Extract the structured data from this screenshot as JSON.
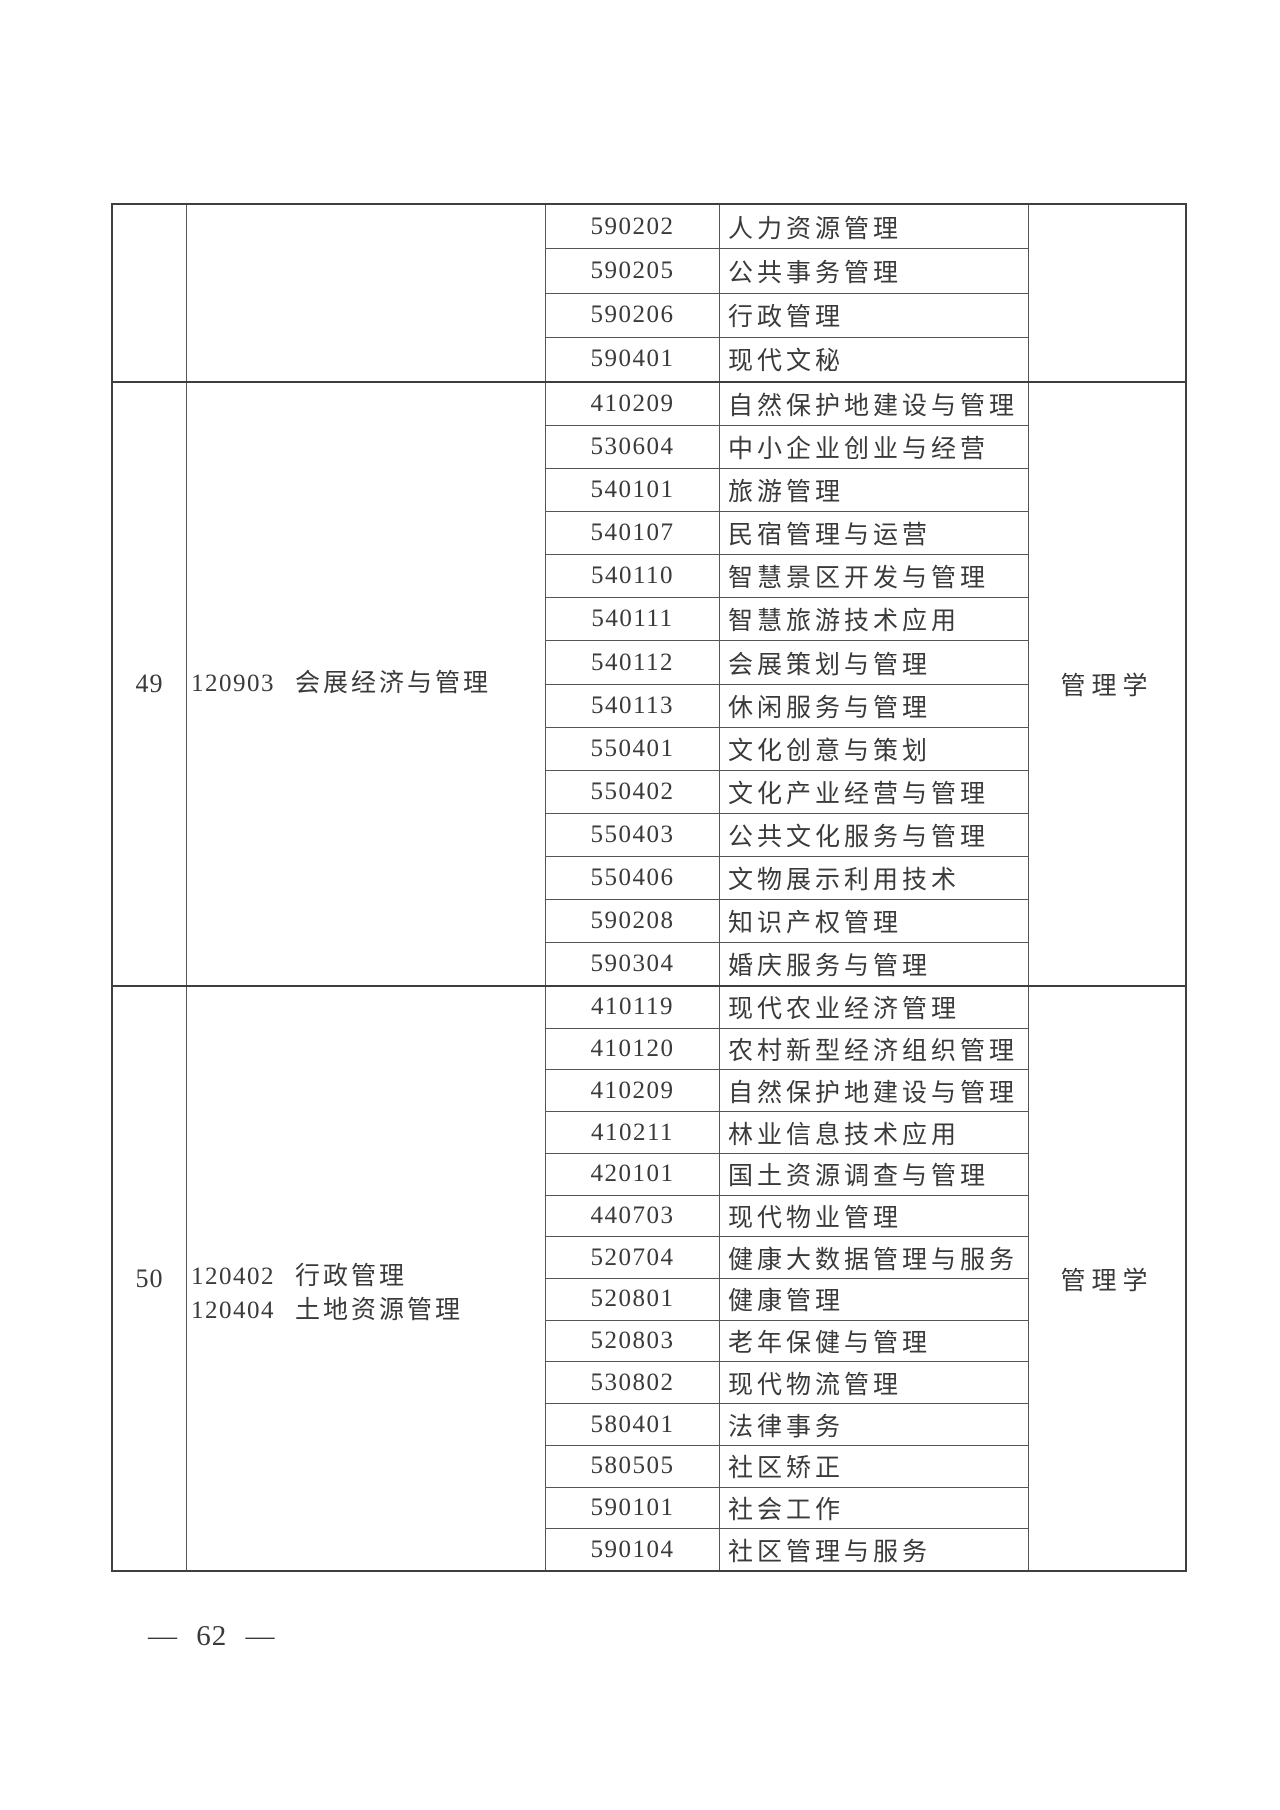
{
  "page": {
    "footer_page_number": "— 62 —"
  },
  "colors": {
    "background": "#ffffff",
    "text": "#3a3a3a",
    "table_border": "#3f3f3f",
    "grid_line": "#555555"
  },
  "table": {
    "sections": [
      {
        "row_no": "",
        "undergrad_majors": [],
        "category": "",
        "specialties": [
          {
            "code": "590202",
            "name": "人力资源管理"
          },
          {
            "code": "590205",
            "name": "公共事务管理"
          },
          {
            "code": "590206",
            "name": "行政管理"
          },
          {
            "code": "590401",
            "name": "现代文秘"
          }
        ]
      },
      {
        "row_no": "49",
        "undergrad_majors": [
          {
            "code": "120903",
            "name": "会展经济与管理"
          }
        ],
        "category": "管理学",
        "specialties": [
          {
            "code": "410209",
            "name": "自然保护地建设与管理"
          },
          {
            "code": "530604",
            "name": "中小企业创业与经营"
          },
          {
            "code": "540101",
            "name": "旅游管理"
          },
          {
            "code": "540107",
            "name": "民宿管理与运营"
          },
          {
            "code": "540110",
            "name": "智慧景区开发与管理"
          },
          {
            "code": "540111",
            "name": "智慧旅游技术应用"
          },
          {
            "code": "540112",
            "name": "会展策划与管理"
          },
          {
            "code": "540113",
            "name": "休闲服务与管理"
          },
          {
            "code": "550401",
            "name": "文化创意与策划"
          },
          {
            "code": "550402",
            "name": "文化产业经营与管理"
          },
          {
            "code": "550403",
            "name": "公共文化服务与管理"
          },
          {
            "code": "550406",
            "name": "文物展示利用技术"
          },
          {
            "code": "590208",
            "name": "知识产权管理"
          },
          {
            "code": "590304",
            "name": "婚庆服务与管理"
          }
        ]
      },
      {
        "row_no": "50",
        "undergrad_majors": [
          {
            "code": "120402",
            "name": "行政管理"
          },
          {
            "code": "120404",
            "name": "土地资源管理"
          }
        ],
        "category": "管理学",
        "specialties": [
          {
            "code": "410119",
            "name": "现代农业经济管理"
          },
          {
            "code": "410120",
            "name": "农村新型经济组织管理"
          },
          {
            "code": "410209",
            "name": "自然保护地建设与管理"
          },
          {
            "code": "410211",
            "name": "林业信息技术应用"
          },
          {
            "code": "420101",
            "name": "国土资源调查与管理"
          },
          {
            "code": "440703",
            "name": "现代物业管理"
          },
          {
            "code": "520704",
            "name": "健康大数据管理与服务"
          },
          {
            "code": "520801",
            "name": "健康管理"
          },
          {
            "code": "520803",
            "name": "老年保健与管理"
          },
          {
            "code": "530802",
            "name": "现代物流管理"
          },
          {
            "code": "580401",
            "name": "法律事务"
          },
          {
            "code": "580505",
            "name": "社区矫正"
          },
          {
            "code": "590101",
            "name": "社会工作"
          },
          {
            "code": "590104",
            "name": "社区管理与服务"
          }
        ]
      }
    ]
  }
}
